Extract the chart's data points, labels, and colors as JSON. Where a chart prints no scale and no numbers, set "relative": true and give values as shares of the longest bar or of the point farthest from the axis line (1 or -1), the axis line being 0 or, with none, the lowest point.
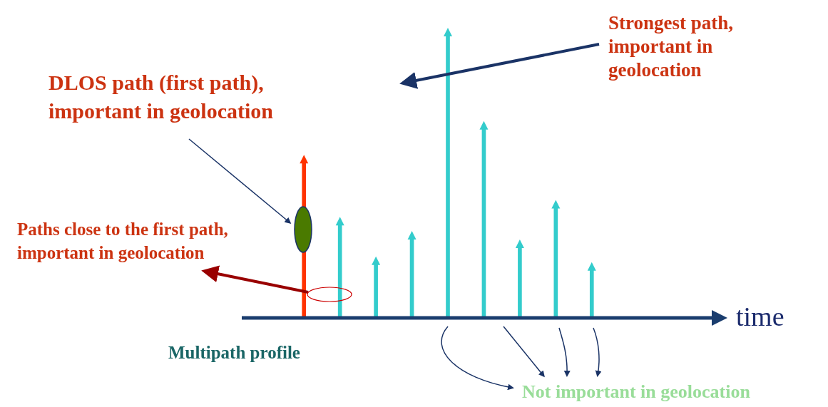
{
  "chart_data": {
    "type": "bar",
    "relative": true,
    "legend": false,
    "tick_labels": false,
    "xlabel": "time",
    "categories": [
      null,
      null,
      null,
      null,
      null,
      null,
      null,
      null,
      null
    ],
    "values": [
      0.55,
      0.33,
      0.19,
      0.28,
      1,
      0.67,
      0.25,
      0.39,
      0.17
    ],
    "colors": [
      "#ff3300",
      "#33cccc",
      "#33cccc",
      "#33cccc",
      "#33cccc",
      "#33cccc",
      "#33cccc",
      "#33cccc",
      "#33cccc"
    ],
    "annotations": [
      "Strongest path, important in geolocation",
      "DLOS path (first path), important in geolocation",
      "Paths close to the first path, important in geolocation",
      "Multipath profile",
      "Not important in geolocation"
    ]
  }
}
